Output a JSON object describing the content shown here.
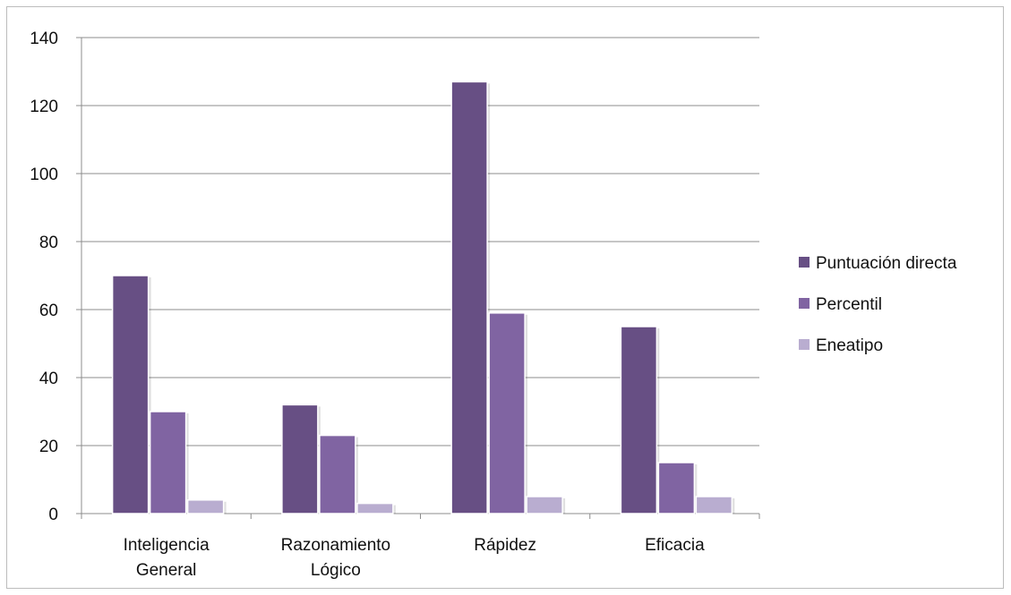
{
  "chart_data": {
    "type": "bar",
    "title": "",
    "xlabel": "",
    "ylabel": "",
    "ylim": [
      0,
      140
    ],
    "yticks": [
      0,
      20,
      40,
      60,
      80,
      100,
      120,
      140
    ],
    "grid": true,
    "legend_position": "right",
    "categories": [
      [
        "Inteligencia",
        "General"
      ],
      [
        "Razonamiento",
        "Lógico"
      ],
      [
        "Rápidez"
      ],
      [
        "Eficacia"
      ]
    ],
    "series": [
      {
        "name": "Puntuación directa",
        "color": "#674f84",
        "values": [
          70,
          32,
          127,
          55
        ]
      },
      {
        "name": "Percentil",
        "color": "#8064a2",
        "values": [
          30,
          23,
          59,
          15
        ]
      },
      {
        "name": "Eneatipo",
        "color": "#b9add0",
        "values": [
          4,
          3,
          5,
          5
        ]
      }
    ]
  }
}
